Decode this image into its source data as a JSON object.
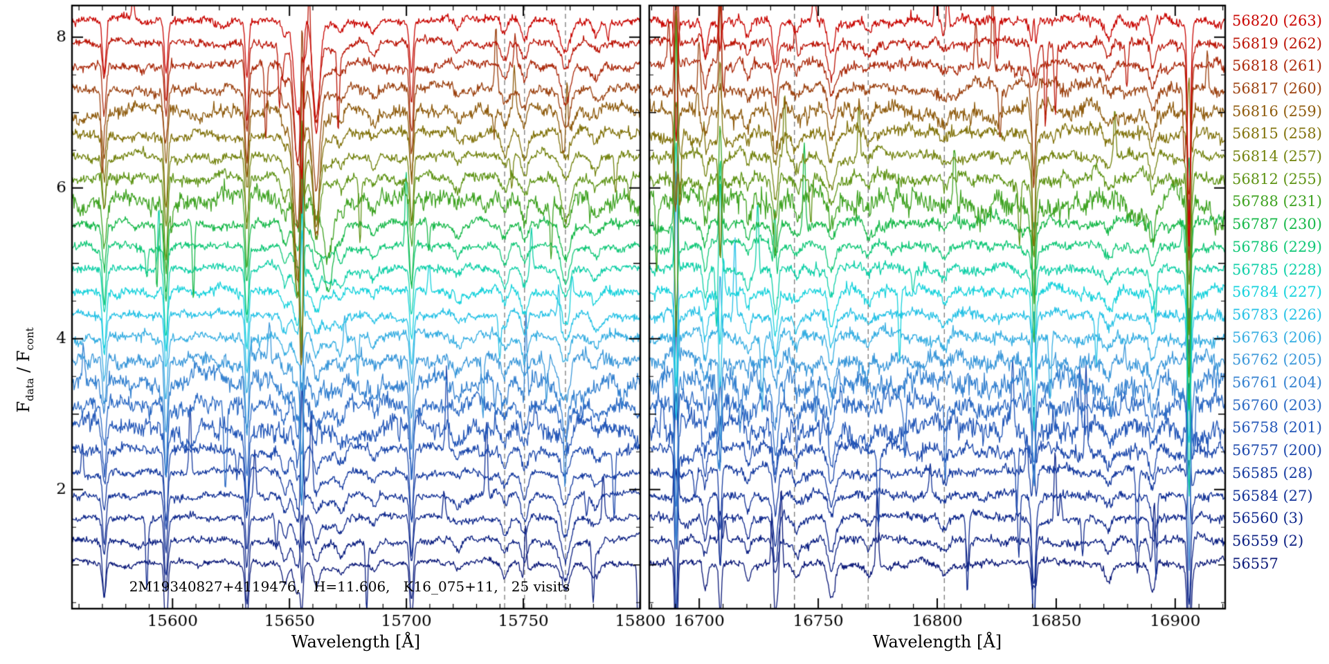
{
  "figure": {
    "xlabel": "Wavelength [Å]",
    "ylabel_f": "F",
    "ylabel_sub1": "data",
    "ylabel_mid": " / F",
    "ylabel_sub2": "cont",
    "annotation": "2M19340827+4119476,   H=11.606,   K16_075+11,   25 visits",
    "bg_color": "#ffffff",
    "axis_color": "#000000",
    "dashed_line_color": "#808080"
  },
  "chart_data": {
    "type": "line",
    "title": "",
    "xlabel": "Wavelength [Å]",
    "ylabel": "F_data / F_cont",
    "ylim": [
      0.42,
      8.42
    ],
    "yticks": [
      2,
      4,
      6,
      8
    ],
    "legend_position": "right-margin",
    "grid": false,
    "panels": [
      {
        "xlim": [
          15557,
          15800
        ],
        "xticks": [
          15600,
          15650,
          15700,
          15750,
          15800
        ],
        "dashed_lines": [
          15742,
          15750.5,
          15768
        ]
      },
      {
        "xlim": [
          16679,
          16921
        ],
        "xticks": [
          16700,
          16750,
          16800,
          16850,
          16900
        ],
        "dashed_lines": [
          16740,
          16771,
          16803
        ]
      }
    ],
    "series": [
      {
        "label": "56557",
        "mjd": 56557,
        "visit": null,
        "color": "#0a1878",
        "offset": 1.02,
        "noise": 0.016
      },
      {
        "label": "56559 (2)",
        "mjd": 56559,
        "visit": 2,
        "color": "#0c2082",
        "offset": 1.32,
        "noise": 0.018
      },
      {
        "label": "56560 (3)",
        "mjd": 56560,
        "visit": 3,
        "color": "#0f288c",
        "offset": 1.62,
        "noise": 0.018
      },
      {
        "label": "56584 (27)",
        "mjd": 56584,
        "visit": 27,
        "color": "#123196",
        "offset": 1.92,
        "noise": 0.02
      },
      {
        "label": "56585 (28)",
        "mjd": 56585,
        "visit": 28,
        "color": "#163ba0",
        "offset": 2.22,
        "noise": 0.02
      },
      {
        "label": "56757 (200)",
        "mjd": 56757,
        "visit": 200,
        "color": "#1c48ac",
        "offset": 2.52,
        "noise": 0.028
      },
      {
        "label": "56758 (201)",
        "mjd": 56758,
        "visit": 201,
        "color": "#2357b8",
        "offset": 2.82,
        "noise": 0.05
      },
      {
        "label": "56760 (203)",
        "mjd": 56760,
        "visit": 203,
        "color": "#2c6ac4",
        "offset": 3.12,
        "noise": 0.045
      },
      {
        "label": "56761 (204)",
        "mjd": 56761,
        "visit": 204,
        "color": "#3481d0",
        "offset": 3.42,
        "noise": 0.052
      },
      {
        "label": "56762 (205)",
        "mjd": 56762,
        "visit": 205,
        "color": "#3b98da",
        "offset": 3.72,
        "noise": 0.038
      },
      {
        "label": "56763 (206)",
        "mjd": 56763,
        "visit": 206,
        "color": "#36aee2",
        "offset": 4.02,
        "noise": 0.026
      },
      {
        "label": "56783 (226)",
        "mjd": 56783,
        "visit": 226,
        "color": "#27c2e6",
        "offset": 4.32,
        "noise": 0.022
      },
      {
        "label": "56784 (227)",
        "mjd": 56784,
        "visit": 227,
        "color": "#16d2dc",
        "offset": 4.62,
        "noise": 0.024
      },
      {
        "label": "56785 (228)",
        "mjd": 56785,
        "visit": 228,
        "color": "#10d0a8",
        "offset": 4.92,
        "noise": 0.022
      },
      {
        "label": "56786 (229)",
        "mjd": 56786,
        "visit": 229,
        "color": "#12c878",
        "offset": 5.22,
        "noise": 0.02
      },
      {
        "label": "56787 (230)",
        "mjd": 56787,
        "visit": 230,
        "color": "#18b94a",
        "offset": 5.52,
        "noise": 0.024
      },
      {
        "label": "56788 (231)",
        "mjd": 56788,
        "visit": 231,
        "color": "#3fa322",
        "offset": 5.82,
        "noise": 0.05
      },
      {
        "label": "56812 (255)",
        "mjd": 56812,
        "visit": 255,
        "color": "#5f9416",
        "offset": 6.12,
        "noise": 0.028
      },
      {
        "label": "56814 (257)",
        "mjd": 56814,
        "visit": 257,
        "color": "#748410",
        "offset": 6.42,
        "noise": 0.024
      },
      {
        "label": "56815 (258)",
        "mjd": 56815,
        "visit": 258,
        "color": "#82730c",
        "offset": 6.72,
        "noise": 0.028
      },
      {
        "label": "56816 (259)",
        "mjd": 56816,
        "visit": 259,
        "color": "#8f5c0e",
        "offset": 7.02,
        "noise": 0.036
      },
      {
        "label": "56817 (260)",
        "mjd": 56817,
        "visit": 260,
        "color": "#9c4210",
        "offset": 7.32,
        "noise": 0.026
      },
      {
        "label": "56818 (261)",
        "mjd": 56818,
        "visit": 261,
        "color": "#ab2a0c",
        "offset": 7.62,
        "noise": 0.024
      },
      {
        "label": "56819 (262)",
        "mjd": 56819,
        "visit": 262,
        "color": "#bb1406",
        "offset": 7.92,
        "noise": 0.022
      },
      {
        "label": "56820 (263)",
        "mjd": 56820,
        "visit": 263,
        "color": "#c90602",
        "offset": 8.22,
        "noise": 0.022
      }
    ],
    "lines_left": [
      {
        "wl": 15570.8,
        "depth": 0.6,
        "width": 0.75
      },
      {
        "wl": 15597.2,
        "depth": 0.85,
        "width": 0.7
      },
      {
        "wl": 15631.8,
        "depth": 0.78,
        "width": 0.7
      },
      {
        "wl": 15648.0,
        "depth": 0.2,
        "width": 1.2
      },
      {
        "wl": 15672.0,
        "depth": 0.18,
        "width": 1.4
      },
      {
        "wl": 15686.0,
        "depth": 0.12,
        "width": 1.3
      },
      {
        "wl": 15702.2,
        "depth": 0.78,
        "width": 0.75
      },
      {
        "wl": 15722.0,
        "depth": 0.12,
        "width": 1.4
      },
      {
        "wl": 15742.0,
        "depth": 0.2,
        "width": 1.3
      },
      {
        "wl": 15750.5,
        "depth": 0.26,
        "width": 1.3
      },
      {
        "wl": 15768.0,
        "depth": 0.42,
        "width": 1.9
      },
      {
        "wl": 15781.0,
        "depth": 0.16,
        "width": 1.5
      }
    ],
    "lines_right": [
      {
        "wl": 16702.5,
        "depth": 0.3,
        "width": 0.9
      },
      {
        "wl": 16720.5,
        "depth": 0.2,
        "width": 1.0
      },
      {
        "wl": 16732.0,
        "depth": 0.5,
        "width": 1.0
      },
      {
        "wl": 16741.0,
        "depth": 0.15,
        "width": 1.2
      },
      {
        "wl": 16755.5,
        "depth": 0.38,
        "width": 1.4
      },
      {
        "wl": 16771.0,
        "depth": 0.12,
        "width": 1.4
      },
      {
        "wl": 16803.0,
        "depth": 0.12,
        "width": 1.4
      },
      {
        "wl": 16840.6,
        "depth": 0.6,
        "width": 0.9
      },
      {
        "wl": 16872.0,
        "depth": 0.15,
        "width": 1.4
      },
      {
        "wl": 16890.5,
        "depth": 0.32,
        "width": 1.1
      },
      {
        "wl": 16906.0,
        "depth": 0.5,
        "width": 0.9
      }
    ],
    "variable_lines": [
      {
        "wl": 15653.5,
        "width": 1.6,
        "from": 17,
        "to": 24,
        "depth_min": 1.1,
        "depth_max": 2.3,
        "base": 0.35
      },
      {
        "wl": 15661.5,
        "width": 1.4,
        "from": 17,
        "to": 24,
        "depth_min": 0.7,
        "depth_max": 1.6,
        "base": 0.25
      },
      {
        "wl": 15666.5,
        "width": 2.0,
        "from": 15,
        "to": 16,
        "depth_min": 0.7,
        "depth_max": 1.1,
        "base": 0.12
      }
    ],
    "sky_lines": [
      {
        "panel": 0,
        "wl": 15655.3,
        "amp": 1.3,
        "width": 0.5
      },
      {
        "panel": 1,
        "wl": 16690.3,
        "amp": 1.9,
        "width": 0.55
      },
      {
        "panel": 1,
        "wl": 16708.8,
        "amp": 0.95,
        "width": 0.5
      },
      {
        "panel": 1,
        "wl": 16840.6,
        "amp": 0.85,
        "width": 0.5
      },
      {
        "panel": 1,
        "wl": 16905.8,
        "amp": 1.9,
        "width": 0.55
      }
    ]
  }
}
